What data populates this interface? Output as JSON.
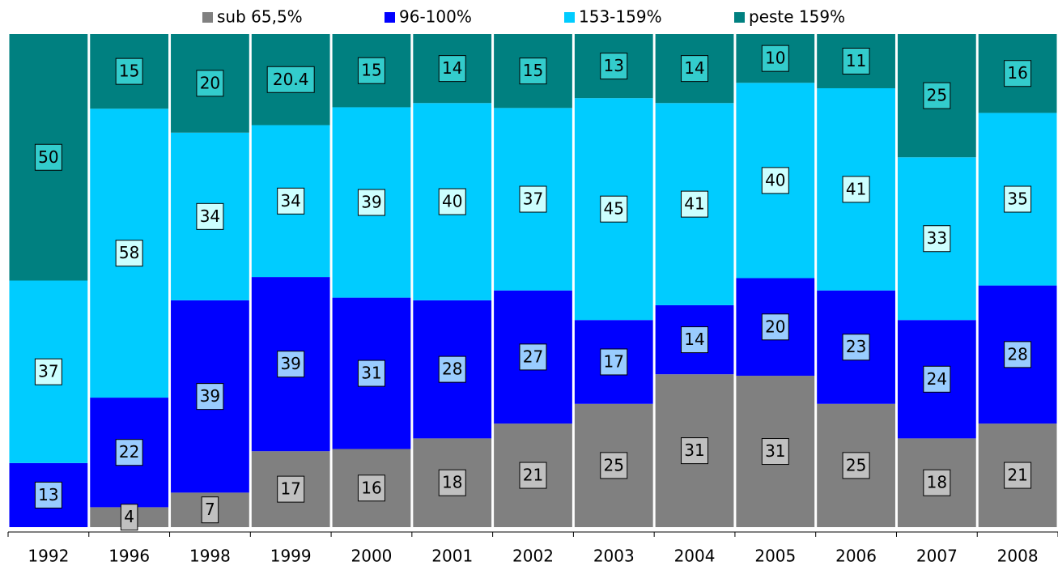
{
  "chart_data": {
    "type": "bar",
    "stack": "percent",
    "categories": [
      "1992",
      "1996",
      "1998",
      "1999",
      "2000",
      "2001",
      "2002",
      "2003",
      "2004",
      "2005",
      "2006",
      "2007",
      "2008"
    ],
    "series": [
      {
        "name": "sub 65,5%",
        "color": "#808080",
        "label_color": "#c0c0c0",
        "values": [
          null,
          4,
          7,
          17,
          16,
          18,
          21,
          25,
          31,
          31,
          25,
          18,
          21
        ]
      },
      {
        "name": "96-100%",
        "color": "#0000ff",
        "label_color": "#99ccff",
        "values": [
          13,
          22,
          39,
          39,
          31,
          28,
          27,
          17,
          14,
          20,
          23,
          24,
          28
        ]
      },
      {
        "name": "153-159%",
        "color": "#00ccff",
        "label_color": "#ccffff",
        "values": [
          37,
          58,
          34,
          34,
          39,
          40,
          37,
          45,
          41,
          40,
          41,
          33,
          35
        ]
      },
      {
        "name": "peste 159%",
        "color": "#008080",
        "label_color": "#33cccc",
        "values": [
          50,
          15,
          20,
          20.4,
          15,
          14,
          15,
          13,
          14,
          10,
          11,
          25,
          16
        ]
      }
    ]
  }
}
